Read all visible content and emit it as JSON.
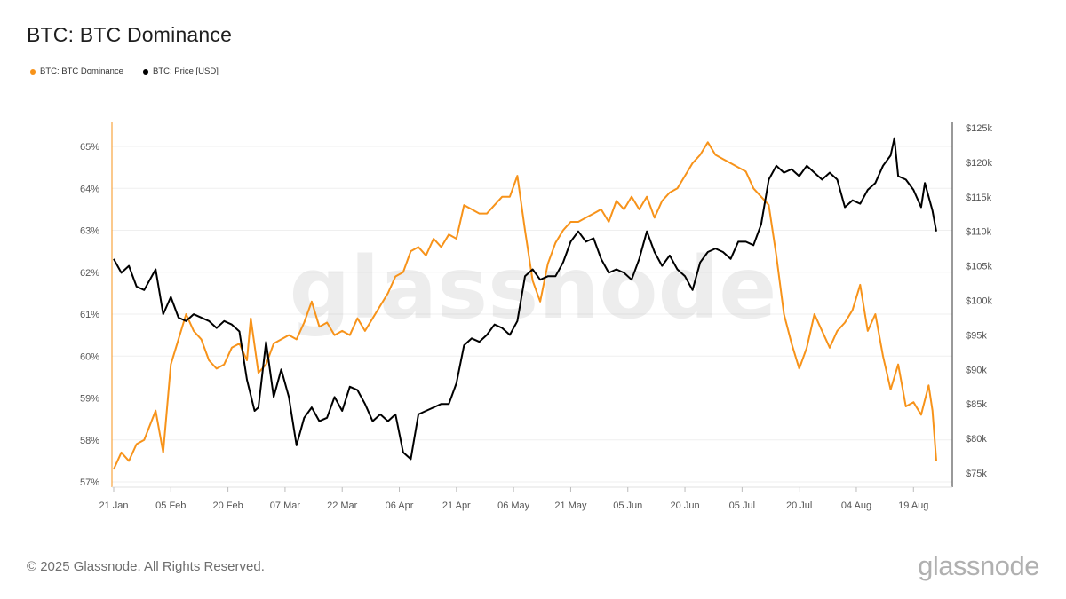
{
  "page": {
    "title": "BTC: BTC Dominance",
    "copyright": "© 2025 Glassnode. All Rights Reserved.",
    "logo_text": "glassnode",
    "watermark": "glassnode"
  },
  "legend": [
    {
      "label": "BTC: BTC Dominance",
      "color": "#F7931A"
    },
    {
      "label": "BTC: Price [USD]",
      "color": "#000000"
    }
  ],
  "chart_data": {
    "type": "line",
    "title": "BTC: BTC Dominance",
    "x_ticks": [
      "21 Jan",
      "05 Feb",
      "20 Feb",
      "07 Mar",
      "22 Mar",
      "06 Apr",
      "21 Apr",
      "06 May",
      "21 May",
      "05 Jun",
      "20 Jun",
      "05 Jul",
      "20 Jul",
      "04 Aug",
      "19 Aug"
    ],
    "y_left": {
      "ticks": [
        "57%",
        "58%",
        "59%",
        "60%",
        "61%",
        "62%",
        "63%",
        "64%",
        "65%"
      ],
      "range": [
        57,
        65.5
      ]
    },
    "y_right": {
      "ticks": [
        "$75k",
        "$80k",
        "$85k",
        "$90k",
        "$95k",
        "$100k",
        "$105k",
        "$110k",
        "$115k",
        "$120k",
        "$125k"
      ],
      "range": [
        75,
        125
      ]
    },
    "grid": "horizontal",
    "legend_position": "top-left",
    "series": [
      {
        "name": "BTC: BTC Dominance",
        "color": "#F7931A",
        "axis": "left",
        "points": [
          [
            "21 Jan",
            57.3
          ],
          [
            "23 Jan",
            57.7
          ],
          [
            "25 Jan",
            57.5
          ],
          [
            "27 Jan",
            57.9
          ],
          [
            "29 Jan",
            58.0
          ],
          [
            "01 Feb",
            58.7
          ],
          [
            "03 Feb",
            57.7
          ],
          [
            "05 Feb",
            59.8
          ],
          [
            "07 Feb",
            60.4
          ],
          [
            "09 Feb",
            61.0
          ],
          [
            "11 Feb",
            60.6
          ],
          [
            "13 Feb",
            60.4
          ],
          [
            "15 Feb",
            59.9
          ],
          [
            "17 Feb",
            59.7
          ],
          [
            "19 Feb",
            59.8
          ],
          [
            "21 Feb",
            60.2
          ],
          [
            "23 Feb",
            60.3
          ],
          [
            "25 Feb",
            59.9
          ],
          [
            "26 Feb",
            60.9
          ],
          [
            "28 Feb",
            59.6
          ],
          [
            "02 Mar",
            59.8
          ],
          [
            "04 Mar",
            60.3
          ],
          [
            "06 Mar",
            60.4
          ],
          [
            "08 Mar",
            60.5
          ],
          [
            "10 Mar",
            60.4
          ],
          [
            "12 Mar",
            60.8
          ],
          [
            "14 Mar",
            61.3
          ],
          [
            "16 Mar",
            60.7
          ],
          [
            "18 Mar",
            60.8
          ],
          [
            "20 Mar",
            60.5
          ],
          [
            "22 Mar",
            60.6
          ],
          [
            "24 Mar",
            60.5
          ],
          [
            "26 Mar",
            60.9
          ],
          [
            "28 Mar",
            60.6
          ],
          [
            "30 Mar",
            60.9
          ],
          [
            "01 Apr",
            61.2
          ],
          [
            "03 Apr",
            61.5
          ],
          [
            "05 Apr",
            61.9
          ],
          [
            "07 Apr",
            62.0
          ],
          [
            "09 Apr",
            62.5
          ],
          [
            "11 Apr",
            62.6
          ],
          [
            "13 Apr",
            62.4
          ],
          [
            "15 Apr",
            62.8
          ],
          [
            "17 Apr",
            62.6
          ],
          [
            "19 Apr",
            62.9
          ],
          [
            "21 Apr",
            62.8
          ],
          [
            "23 Apr",
            63.6
          ],
          [
            "25 Apr",
            63.5
          ],
          [
            "27 Apr",
            63.4
          ],
          [
            "29 Apr",
            63.4
          ],
          [
            "01 May",
            63.6
          ],
          [
            "03 May",
            63.8
          ],
          [
            "05 May",
            63.8
          ],
          [
            "07 May",
            64.3
          ],
          [
            "09 May",
            63.0
          ],
          [
            "11 May",
            61.8
          ],
          [
            "13 May",
            61.3
          ],
          [
            "15 May",
            62.2
          ],
          [
            "17 May",
            62.7
          ],
          [
            "19 May",
            63.0
          ],
          [
            "21 May",
            63.2
          ],
          [
            "23 May",
            63.2
          ],
          [
            "25 May",
            63.3
          ],
          [
            "27 May",
            63.4
          ],
          [
            "29 May",
            63.5
          ],
          [
            "31 May",
            63.2
          ],
          [
            "02 Jun",
            63.7
          ],
          [
            "04 Jun",
            63.5
          ],
          [
            "06 Jun",
            63.8
          ],
          [
            "08 Jun",
            63.5
          ],
          [
            "10 Jun",
            63.8
          ],
          [
            "12 Jun",
            63.3
          ],
          [
            "14 Jun",
            63.7
          ],
          [
            "16 Jun",
            63.9
          ],
          [
            "18 Jun",
            64.0
          ],
          [
            "20 Jun",
            64.3
          ],
          [
            "22 Jun",
            64.6
          ],
          [
            "24 Jun",
            64.8
          ],
          [
            "26 Jun",
            65.1
          ],
          [
            "28 Jun",
            64.8
          ],
          [
            "30 Jun",
            64.7
          ],
          [
            "02 Jul",
            64.6
          ],
          [
            "04 Jul",
            64.5
          ],
          [
            "06 Jul",
            64.4
          ],
          [
            "08 Jul",
            64.0
          ],
          [
            "10 Jul",
            63.8
          ],
          [
            "12 Jul",
            63.6
          ],
          [
            "14 Jul",
            62.4
          ],
          [
            "16 Jul",
            61.0
          ],
          [
            "18 Jul",
            60.3
          ],
          [
            "20 Jul",
            59.7
          ],
          [
            "22 Jul",
            60.2
          ],
          [
            "24 Jul",
            61.0
          ],
          [
            "26 Jul",
            60.6
          ],
          [
            "28 Jul",
            60.2
          ],
          [
            "30 Jul",
            60.6
          ],
          [
            "01 Aug",
            60.8
          ],
          [
            "03 Aug",
            61.1
          ],
          [
            "05 Aug",
            61.7
          ],
          [
            "07 Aug",
            60.6
          ],
          [
            "09 Aug",
            61.0
          ],
          [
            "11 Aug",
            60.0
          ],
          [
            "13 Aug",
            59.2
          ],
          [
            "15 Aug",
            59.8
          ],
          [
            "17 Aug",
            58.8
          ],
          [
            "19 Aug",
            58.9
          ],
          [
            "21 Aug",
            58.6
          ],
          [
            "23 Aug",
            59.3
          ],
          [
            "24 Aug",
            58.7
          ],
          [
            "25 Aug",
            57.5
          ]
        ]
      },
      {
        "name": "BTC: Price [USD]",
        "color": "#000000",
        "axis": "right",
        "points": [
          [
            "21 Jan",
            106.0
          ],
          [
            "23 Jan",
            104.0
          ],
          [
            "25 Jan",
            105.0
          ],
          [
            "27 Jan",
            102.0
          ],
          [
            "29 Jan",
            101.5
          ],
          [
            "01 Feb",
            104.5
          ],
          [
            "03 Feb",
            98.0
          ],
          [
            "05 Feb",
            100.5
          ],
          [
            "07 Feb",
            97.5
          ],
          [
            "09 Feb",
            97.0
          ],
          [
            "11 Feb",
            98.0
          ],
          [
            "13 Feb",
            97.5
          ],
          [
            "15 Feb",
            97.0
          ],
          [
            "17 Feb",
            96.0
          ],
          [
            "19 Feb",
            97.0
          ],
          [
            "21 Feb",
            96.5
          ],
          [
            "23 Feb",
            95.5
          ],
          [
            "25 Feb",
            88.5
          ],
          [
            "27 Feb",
            84.0
          ],
          [
            "28 Feb",
            84.5
          ],
          [
            "02 Mar",
            94.0
          ],
          [
            "04 Mar",
            86.0
          ],
          [
            "06 Mar",
            90.0
          ],
          [
            "08 Mar",
            86.0
          ],
          [
            "10 Mar",
            79.0
          ],
          [
            "12 Mar",
            83.0
          ],
          [
            "14 Mar",
            84.5
          ],
          [
            "16 Mar",
            82.5
          ],
          [
            "18 Mar",
            83.0
          ],
          [
            "20 Mar",
            86.0
          ],
          [
            "22 Mar",
            84.0
          ],
          [
            "24 Mar",
            87.5
          ],
          [
            "26 Mar",
            87.0
          ],
          [
            "28 Mar",
            85.0
          ],
          [
            "30 Mar",
            82.5
          ],
          [
            "01 Apr",
            83.5
          ],
          [
            "03 Apr",
            82.5
          ],
          [
            "05 Apr",
            83.5
          ],
          [
            "07 Apr",
            78.0
          ],
          [
            "09 Apr",
            77.0
          ],
          [
            "11 Apr",
            83.5
          ],
          [
            "13 Apr",
            84.0
          ],
          [
            "15 Apr",
            84.5
          ],
          [
            "17 Apr",
            85.0
          ],
          [
            "19 Apr",
            85.0
          ],
          [
            "21 Apr",
            88.0
          ],
          [
            "23 Apr",
            93.5
          ],
          [
            "25 Apr",
            94.5
          ],
          [
            "27 Apr",
            94.0
          ],
          [
            "29 Apr",
            95.0
          ],
          [
            "01 May",
            96.5
          ],
          [
            "03 May",
            96.0
          ],
          [
            "05 May",
            95.0
          ],
          [
            "07 May",
            97.0
          ],
          [
            "09 May",
            103.5
          ],
          [
            "11 May",
            104.5
          ],
          [
            "13 May",
            103.0
          ],
          [
            "15 May",
            103.5
          ],
          [
            "17 May",
            103.5
          ],
          [
            "19 May",
            105.5
          ],
          [
            "21 May",
            108.5
          ],
          [
            "23 May",
            110.0
          ],
          [
            "25 May",
            108.5
          ],
          [
            "27 May",
            109.0
          ],
          [
            "29 May",
            106.0
          ],
          [
            "31 May",
            104.0
          ],
          [
            "02 Jun",
            104.5
          ],
          [
            "04 Jun",
            104.0
          ],
          [
            "06 Jun",
            103.0
          ],
          [
            "08 Jun",
            106.0
          ],
          [
            "10 Jun",
            110.0
          ],
          [
            "12 Jun",
            107.0
          ],
          [
            "14 Jun",
            105.0
          ],
          [
            "16 Jun",
            106.5
          ],
          [
            "18 Jun",
            104.5
          ],
          [
            "20 Jun",
            103.5
          ],
          [
            "22 Jun",
            101.5
          ],
          [
            "24 Jun",
            105.5
          ],
          [
            "26 Jun",
            107.0
          ],
          [
            "28 Jun",
            107.5
          ],
          [
            "30 Jun",
            107.0
          ],
          [
            "02 Jul",
            106.0
          ],
          [
            "04 Jul",
            108.5
          ],
          [
            "06 Jul",
            108.5
          ],
          [
            "08 Jul",
            108.0
          ],
          [
            "10 Jul",
            111.0
          ],
          [
            "12 Jul",
            117.5
          ],
          [
            "14 Jul",
            119.5
          ],
          [
            "16 Jul",
            118.5
          ],
          [
            "18 Jul",
            119.0
          ],
          [
            "20 Jul",
            118.0
          ],
          [
            "22 Jul",
            119.5
          ],
          [
            "24 Jul",
            118.5
          ],
          [
            "26 Jul",
            117.5
          ],
          [
            "28 Jul",
            118.5
          ],
          [
            "30 Jul",
            117.5
          ],
          [
            "01 Aug",
            113.5
          ],
          [
            "03 Aug",
            114.5
          ],
          [
            "05 Aug",
            114.0
          ],
          [
            "07 Aug",
            116.0
          ],
          [
            "09 Aug",
            117.0
          ],
          [
            "11 Aug",
            119.5
          ],
          [
            "13 Aug",
            121.0
          ],
          [
            "14 Aug",
            123.5
          ],
          [
            "15 Aug",
            118.0
          ],
          [
            "17 Aug",
            117.5
          ],
          [
            "19 Aug",
            116.0
          ],
          [
            "21 Aug",
            113.5
          ],
          [
            "22 Aug",
            117.0
          ],
          [
            "24 Aug",
            113.0
          ],
          [
            "25 Aug",
            110.0
          ]
        ]
      }
    ]
  }
}
